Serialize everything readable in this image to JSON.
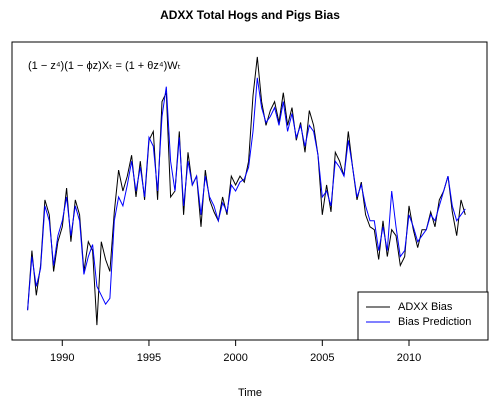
{
  "chart_data": {
    "type": "line",
    "title": "ADXX Total Hogs and Pigs Bias",
    "x_label": "Time",
    "annotation": "(1 − z⁴)(1 − ϕz)Xₜ = (1 + θz⁴)Wₜ",
    "x": [
      1988,
      1988.25,
      1988.5,
      1988.75,
      1989,
      1989.25,
      1989.5,
      1989.75,
      1990,
      1990.25,
      1990.5,
      1990.75,
      1991,
      1991.25,
      1991.5,
      1991.75,
      1992,
      1992.25,
      1992.5,
      1992.75,
      1993,
      1993.25,
      1993.5,
      1993.75,
      1994,
      1994.25,
      1994.5,
      1994.75,
      1995,
      1995.25,
      1995.5,
      1995.75,
      1996,
      1996.25,
      1996.5,
      1996.75,
      1997,
      1997.25,
      1997.5,
      1997.75,
      1998,
      1998.25,
      1998.5,
      1998.75,
      1999,
      1999.25,
      1999.5,
      1999.75,
      2000,
      2000.25,
      2000.5,
      2000.75,
      2001,
      2001.25,
      2001.5,
      2001.75,
      2002,
      2002.25,
      2002.5,
      2002.75,
      2003,
      2003.25,
      2003.5,
      2003.75,
      2004,
      2004.25,
      2004.5,
      2004.75,
      2005,
      2005.25,
      2005.5,
      2005.75,
      2006,
      2006.25,
      2006.5,
      2006.75,
      2007,
      2007.25,
      2007.5,
      2007.75,
      2008,
      2008.25,
      2008.5,
      2008.75,
      2009,
      2009.25,
      2009.5,
      2009.75,
      2010,
      2010.25,
      2010.5,
      2010.75,
      2011,
      2011.25,
      2011.5,
      2011.75,
      2012,
      2012.25,
      2012.5,
      2012.75,
      2013,
      2013.25
    ],
    "series": [
      {
        "name": "ADXX Bias",
        "color": "#000000",
        "values": [
          10,
          30,
          15,
          25,
          47,
          42,
          23,
          33,
          38,
          51,
          33,
          47,
          42,
          23,
          33,
          30,
          5,
          33,
          27,
          23,
          43,
          57,
          50,
          55,
          62,
          48,
          60,
          47,
          67,
          70,
          47,
          80,
          83,
          48,
          50,
          70,
          42,
          63,
          52,
          55,
          38,
          57,
          47,
          43,
          40,
          48,
          42,
          55,
          52,
          55,
          53,
          60,
          82,
          95,
          80,
          72,
          77,
          80,
          73,
          83,
          72,
          78,
          67,
          73,
          63,
          77,
          72,
          62,
          42,
          52,
          43,
          63,
          60,
          55,
          70,
          58,
          47,
          53,
          42,
          38,
          37,
          27,
          40,
          28,
          37,
          35,
          25,
          28,
          45,
          37,
          31,
          37,
          37,
          43,
          38,
          47,
          50,
          55,
          43,
          35,
          47,
          42
        ]
      },
      {
        "name": "Bias Prediction",
        "color": "#0000ff",
        "values": [
          10,
          28,
          18,
          24,
          45,
          40,
          25,
          35,
          40,
          48,
          35,
          45,
          40,
          22,
          28,
          32,
          18,
          15,
          12,
          14,
          40,
          48,
          45,
          52,
          60,
          50,
          58,
          48,
          68,
          65,
          50,
          75,
          85,
          60,
          50,
          68,
          45,
          60,
          52,
          55,
          42,
          55,
          48,
          45,
          40,
          46,
          43,
          52,
          50,
          53,
          54,
          58,
          70,
          88,
          78,
          73,
          75,
          78,
          72,
          80,
          70,
          76,
          68,
          72,
          65,
          72,
          70,
          62,
          48,
          50,
          45,
          60,
          58,
          55,
          67,
          58,
          48,
          52,
          45,
          40,
          40,
          30,
          38,
          30,
          50,
          38,
          28,
          30,
          42,
          38,
          33,
          35,
          37,
          42,
          40,
          45,
          50,
          55,
          45,
          40,
          42,
          44
        ]
      }
    ],
    "xlim": [
      1987.1,
      2014.5
    ],
    "xticks": [
      1990,
      1995,
      2000,
      2005,
      2010
    ],
    "ylim": [
      0,
      100
    ],
    "legend": "bottom-right"
  }
}
